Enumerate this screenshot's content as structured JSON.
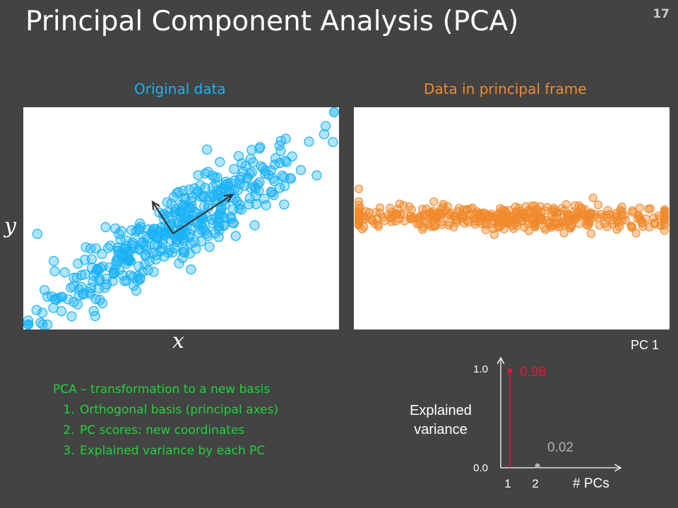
{
  "slide": {
    "title": "Principal Component Analysis (PCA)",
    "page_number": "17"
  },
  "panels": {
    "original_title": "Original data",
    "principal_title": "Data in principal frame",
    "y_label": "y",
    "x_label": "x",
    "pc_axis_label": "PC 1"
  },
  "notes": {
    "heading": "PCA – transformation to a new basis",
    "items": [
      "Orthogonal basis (principal axes)",
      "PC scores: new coordinates",
      "Explained variance by each PC"
    ]
  },
  "colors": {
    "background": "#434343",
    "original_points": "#1ab2f5",
    "principal_points": "#f08a2c",
    "pc1_stem": "#e8173a",
    "pc2_stem": "#b0b0b0",
    "notes_text": "#22d13a"
  },
  "chart_data": [
    {
      "type": "scatter",
      "title": "Original data",
      "xlabel": "x",
      "ylabel": "y",
      "trend": "strong positive linear correlation",
      "principal_axes": [
        "long arrow along the main direction",
        "short arrow orthogonal to it"
      ]
    },
    {
      "type": "scatter",
      "title": "Data in principal frame",
      "xlabel": "PC 1",
      "trend": "points spread horizontally along PC 1 with small vertical spread"
    },
    {
      "type": "stem",
      "ylabel": "Explained variance",
      "xlabel": "# PCs",
      "categories": [
        "1",
        "2"
      ],
      "values": [
        0.98,
        0.02
      ],
      "value_labels": [
        "0.98",
        "0.02"
      ],
      "y_ticks": [
        "0.0",
        "1.0"
      ],
      "ylim": [
        0,
        1
      ]
    }
  ]
}
